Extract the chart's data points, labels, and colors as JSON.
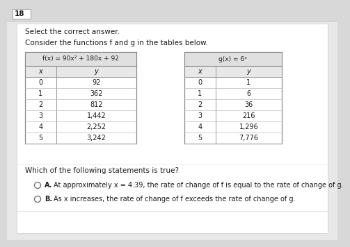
{
  "question_number": "18",
  "instruction": "Select the correct answer.",
  "description": "Consider the functions f and g in the tables below.",
  "f_title": "f(x) = 90x² + 180x + 92",
  "g_title": "g(x) = 6ˣ",
  "f_x": [
    "0",
    "1",
    "2",
    "3",
    "4",
    "5"
  ],
  "f_y": [
    "92",
    "362",
    "812",
    "1,442",
    "2,252",
    "3,242"
  ],
  "g_x": [
    "0",
    "1",
    "2",
    "3",
    "4",
    "5"
  ],
  "g_y": [
    "1",
    "6",
    "36",
    "216",
    "1,296",
    "7,776"
  ],
  "question": "Which of the following statements is true?",
  "option_a_label": "A.",
  "option_a_text": "At approximately x = 4.39, the rate of change of f is equal to the rate of change of g.",
  "option_b_label": "B.",
  "option_b_text": "As x increases, the rate of change of f exceeds the rate of change of g.",
  "bg_color": "#d8d8d8",
  "content_bg": "#e8e8e8",
  "table_bg": "#ffffff",
  "header_bg": "#e0e0e0",
  "col_header_bg": "#eeeeee",
  "border_color": "#999999",
  "text_color": "#1a1a1a",
  "circle_color": "#666666"
}
